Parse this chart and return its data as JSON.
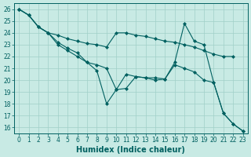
{
  "title": "",
  "xlabel": "Humidex (Indice chaleur)",
  "xlim": [
    -0.5,
    23.5
  ],
  "ylim": [
    15.5,
    26.5
  ],
  "bg_color": "#c8eae4",
  "line_color": "#006060",
  "grid_color": "#a0d0c8",
  "lines": [
    {
      "x": [
        0,
        1,
        2,
        3,
        4,
        5,
        6,
        7,
        8,
        9,
        10,
        11,
        12,
        13,
        14,
        15,
        16,
        17,
        18,
        19,
        20,
        21,
        22,
        23
      ],
      "y": [
        26.0,
        25.5,
        24.5,
        24.0,
        23.8,
        23.5,
        23.3,
        23.1,
        23.0,
        22.8,
        24.0,
        24.0,
        23.8,
        23.7,
        23.5,
        23.3,
        23.2,
        23.0,
        22.8,
        22.5,
        22.2,
        22.0,
        22.0,
        null
      ]
    },
    {
      "x": [
        0,
        1,
        2,
        3,
        4,
        5,
        6,
        7,
        8,
        9,
        10,
        11,
        12,
        13,
        14,
        15,
        16,
        17,
        18,
        19,
        20,
        21,
        22,
        23
      ],
      "y": [
        26.0,
        25.5,
        24.5,
        24.0,
        23.2,
        22.7,
        22.3,
        21.5,
        21.3,
        21.0,
        19.2,
        19.3,
        20.3,
        20.2,
        20.2,
        20.1,
        21.3,
        21.0,
        20.7,
        20.0,
        19.8,
        17.2,
        16.3,
        15.7
      ]
    },
    {
      "x": [
        0,
        1,
        2,
        3,
        4,
        5,
        6,
        7,
        8,
        9,
        10,
        11,
        12,
        13,
        14,
        15,
        16,
        17,
        18,
        19,
        20,
        21,
        22,
        23
      ],
      "y": [
        26.0,
        25.5,
        24.5,
        24.0,
        23.0,
        22.5,
        22.0,
        21.5,
        20.8,
        18.0,
        19.2,
        20.5,
        20.3,
        20.2,
        20.0,
        20.1,
        21.5,
        24.8,
        23.3,
        23.0,
        19.8,
        17.2,
        16.3,
        15.7
      ]
    }
  ],
  "xtick_vals": [
    0,
    1,
    2,
    3,
    4,
    5,
    6,
    7,
    8,
    9,
    10,
    11,
    12,
    13,
    14,
    15,
    16,
    17,
    18,
    19,
    20,
    21,
    22,
    23
  ],
  "xtick_labels": [
    "0",
    "1",
    "2",
    "3",
    "4",
    "5",
    "6",
    "7",
    "8",
    "9",
    "10",
    "11",
    "12",
    "13",
    "14",
    "15",
    "16",
    "17",
    "18",
    "19",
    "20",
    "21",
    "22",
    "23"
  ],
  "ytick_vals": [
    16,
    17,
    18,
    19,
    20,
    21,
    22,
    23,
    24,
    25,
    26
  ],
  "ytick_labels": [
    "16",
    "17",
    "18",
    "19",
    "20",
    "21",
    "22",
    "23",
    "24",
    "25",
    "26"
  ],
  "tick_fontsize": 5.5,
  "xlabel_fontsize": 7.0,
  "marker": "D",
  "marker_size": 2.0,
  "linewidth": 0.8
}
